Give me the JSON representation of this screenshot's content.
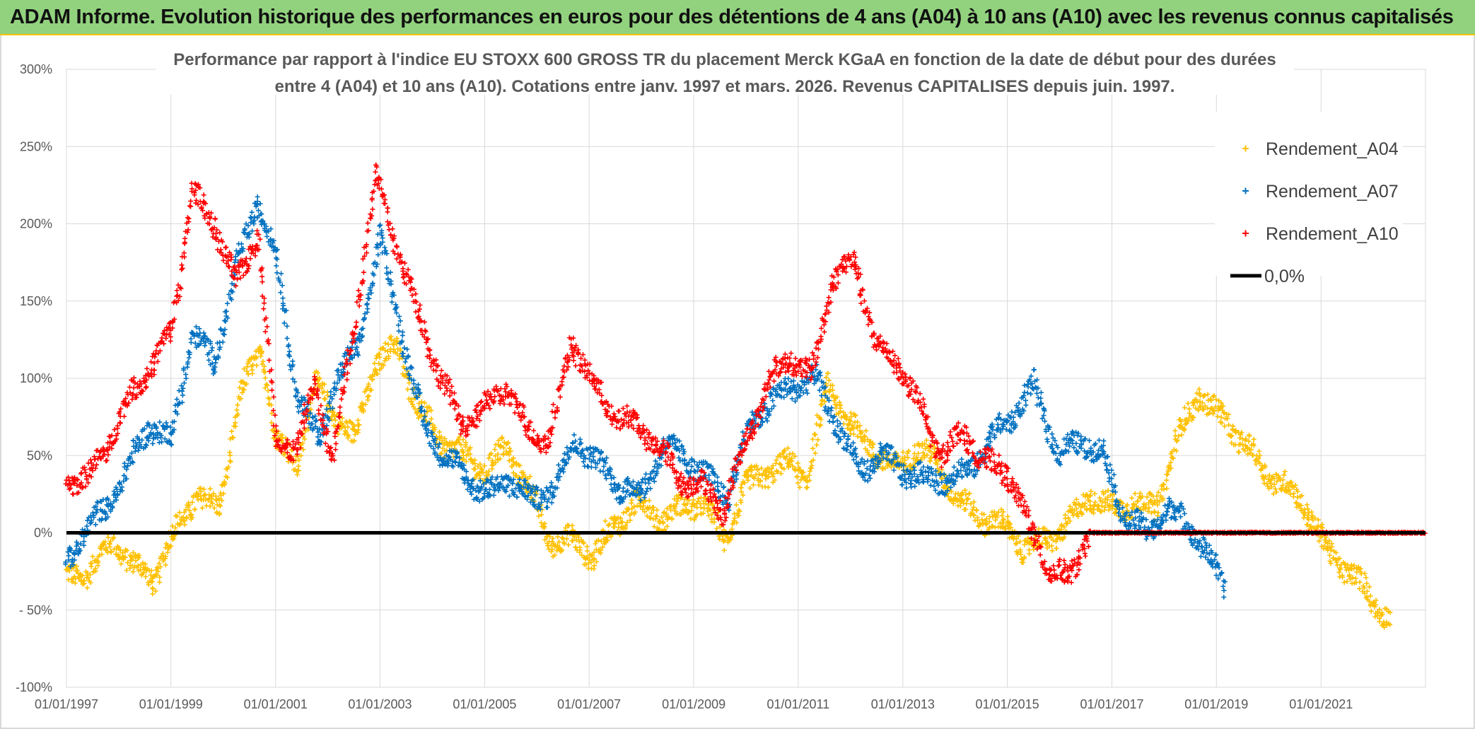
{
  "header": {
    "title": "ADAM Informe. Evolution historique des performances en euros pour des détentions de 4 ans (A04) à 10 ans (A10) avec les revenus connus capitalisés"
  },
  "chart_data": {
    "type": "scatter",
    "title_line1": "Performance par rapport à l'indice EU STOXX 600 GROSS TR  du placement Merck KGaA en fonction de la date de début pour des durées",
    "title_line2": "entre 4 (A04) et 10 ans (A10). Cotations entre janv. 1997 et mars. 2026. Revenus CAPITALISES depuis juin. 1997.",
    "xlabel": "",
    "ylabel": "",
    "x_ticks": [
      "01/01/1997",
      "01/01/1999",
      "01/01/2001",
      "01/01/2003",
      "01/01/2005",
      "01/01/2007",
      "01/01/2009",
      "01/01/2011",
      "01/01/2013",
      "01/01/2015",
      "01/01/2017",
      "01/01/2019",
      "01/01/2021"
    ],
    "y_ticks": [
      "300%",
      "250%",
      "200%",
      "150%",
      "100%",
      "50%",
      "0%",
      "- 50%",
      "-100%"
    ],
    "xlim": [
      "1997-01-01",
      "2023-01-01"
    ],
    "ylim": [
      -100,
      300
    ],
    "grid": true,
    "legend_position": "top-right",
    "reference_line": {
      "name": "0,0%",
      "value": 0,
      "color": "#000000"
    },
    "series": [
      {
        "name": "Rendement_A04",
        "color": "#ffc000",
        "x": [
          "1997-01-01",
          "1997-06-01",
          "1997-12-01",
          "1998-04-01",
          "1998-09-01",
          "1999-01-01",
          "1999-07-01",
          "1999-12-01",
          "2000-05-01",
          "2000-10-01",
          "2001-01-01",
          "2001-06-01",
          "2001-10-01",
          "2002-02-01",
          "2002-07-01",
          "2002-12-01",
          "2003-05-01",
          "2003-10-01",
          "2004-03-01",
          "2004-08-01",
          "2005-01-01",
          "2005-06-01",
          "2005-11-01",
          "2006-04-01",
          "2006-09-01",
          "2007-02-01",
          "2007-07-01",
          "2007-12-01",
          "2008-05-01",
          "2008-10-01",
          "2009-03-01",
          "2009-08-01",
          "2010-01-01",
          "2010-06-01",
          "2010-11-01",
          "2011-03-01",
          "2011-08-01",
          "2012-01-01",
          "2012-06-01",
          "2012-11-01",
          "2013-04-01",
          "2013-09-01",
          "2014-02-01",
          "2014-07-01",
          "2014-12-01",
          "2015-05-01",
          "2015-10-01",
          "2016-03-01",
          "2016-08-01",
          "2017-01-01",
          "2017-06-01",
          "2017-11-01",
          "2018-04-01",
          "2018-09-01",
          "2019-02-01",
          "2019-07-01",
          "2019-12-01",
          "2020-05-01",
          "2020-10-01",
          "2021-03-01",
          "2021-08-01",
          "2022-01-01",
          "2022-05-01"
        ],
        "y": [
          -30,
          -25,
          -5,
          -20,
          -30,
          -5,
          25,
          15,
          90,
          120,
          60,
          45,
          95,
          80,
          60,
          110,
          120,
          80,
          60,
          50,
          40,
          55,
          30,
          -5,
          -5,
          -15,
          5,
          20,
          10,
          15,
          20,
          -5,
          30,
          40,
          45,
          35,
          95,
          70,
          55,
          40,
          55,
          45,
          20,
          10,
          5,
          -10,
          -5,
          5,
          25,
          15,
          20,
          15,
          60,
          90,
          75,
          60,
          40,
          30,
          15,
          -15,
          -25,
          -45,
          -55
        ]
      },
      {
        "name": "Rendement_A07",
        "color": "#0070c0",
        "x": [
          "1997-01-01",
          "1997-05-01",
          "1997-10-01",
          "1998-03-01",
          "1998-08-01",
          "1999-01-01",
          "1999-06-01",
          "1999-11-01",
          "2000-04-01",
          "2000-09-01",
          "2001-01-01",
          "2001-06-01",
          "2001-11-01",
          "2002-03-01",
          "2002-08-01",
          "2003-01-01",
          "2003-06-01",
          "2003-11-01",
          "2004-04-01",
          "2004-09-01",
          "2005-02-01",
          "2005-07-01",
          "2005-12-01",
          "2006-05-01",
          "2006-10-01",
          "2007-03-01",
          "2007-08-01",
          "2008-01-01",
          "2008-06-01",
          "2008-11-01",
          "2009-04-01",
          "2009-09-01",
          "2010-02-01",
          "2010-07-01",
          "2010-12-01",
          "2011-05-01",
          "2011-10-01",
          "2012-03-01",
          "2012-08-01",
          "2013-01-01",
          "2013-06-01",
          "2013-11-01",
          "2014-04-01",
          "2014-09-01",
          "2015-02-01",
          "2015-07-01",
          "2016-01-01",
          "2016-06-01",
          "2016-11-01",
          "2017-04-01",
          "2017-09-01",
          "2018-02-01",
          "2018-07-01",
          "2018-12-01",
          "2019-03-01"
        ],
        "y": [
          -20,
          0,
          15,
          40,
          70,
          60,
          130,
          110,
          170,
          215,
          180,
          90,
          60,
          100,
          120,
          190,
          130,
          70,
          50,
          35,
          25,
          35,
          20,
          30,
          60,
          45,
          30,
          25,
          55,
          50,
          35,
          25,
          70,
          85,
          95,
          100,
          70,
          40,
          50,
          40,
          35,
          35,
          40,
          60,
          75,
          95,
          50,
          60,
          50,
          10,
          0,
          15,
          5,
          -20,
          -35
        ]
      },
      {
        "name": "Rendement_A10",
        "color": "#ff0000",
        "x": [
          "1997-01-01",
          "1997-06-01",
          "1997-11-01",
          "1998-04-01",
          "1998-09-01",
          "1999-01-01",
          "1999-06-01",
          "1999-11-01",
          "2000-04-01",
          "2000-09-01",
          "2001-01-01",
          "2001-06-01",
          "2001-10-01",
          "2002-02-01",
          "2002-07-01",
          "2002-12-01",
          "2003-05-01",
          "2003-10-01",
          "2004-03-01",
          "2004-08-01",
          "2005-01-01",
          "2005-06-01",
          "2005-11-01",
          "2006-04-01",
          "2006-09-01",
          "2007-02-01",
          "2007-07-01",
          "2007-12-01",
          "2008-05-01",
          "2008-10-01",
          "2009-03-01",
          "2009-08-01",
          "2010-01-01",
          "2010-06-01",
          "2010-11-01",
          "2011-04-01",
          "2011-09-01",
          "2012-02-01",
          "2012-07-01",
          "2012-12-01",
          "2013-05-01",
          "2013-10-01",
          "2014-03-01",
          "2014-08-01",
          "2015-01-01",
          "2015-06-01",
          "2015-11-01",
          "2016-03-01",
          "2016-08-01",
          "2017-06-01",
          "2018-06-01",
          "2019-06-01",
          "2020-06-01",
          "2021-06-01",
          "2022-06-01",
          "2023-01-01"
        ],
        "y": [
          35,
          35,
          60,
          90,
          110,
          130,
          220,
          200,
          160,
          195,
          60,
          55,
          95,
          50,
          130,
          230,
          185,
          140,
          100,
          70,
          80,
          95,
          65,
          60,
          125,
          95,
          75,
          70,
          55,
          35,
          30,
          15,
          60,
          95,
          115,
          100,
          165,
          175,
          120,
          110,
          80,
          50,
          65,
          45,
          40,
          5,
          -25,
          -30,
          0,
          0,
          0,
          0,
          0,
          0,
          0,
          0
        ]
      }
    ]
  }
}
